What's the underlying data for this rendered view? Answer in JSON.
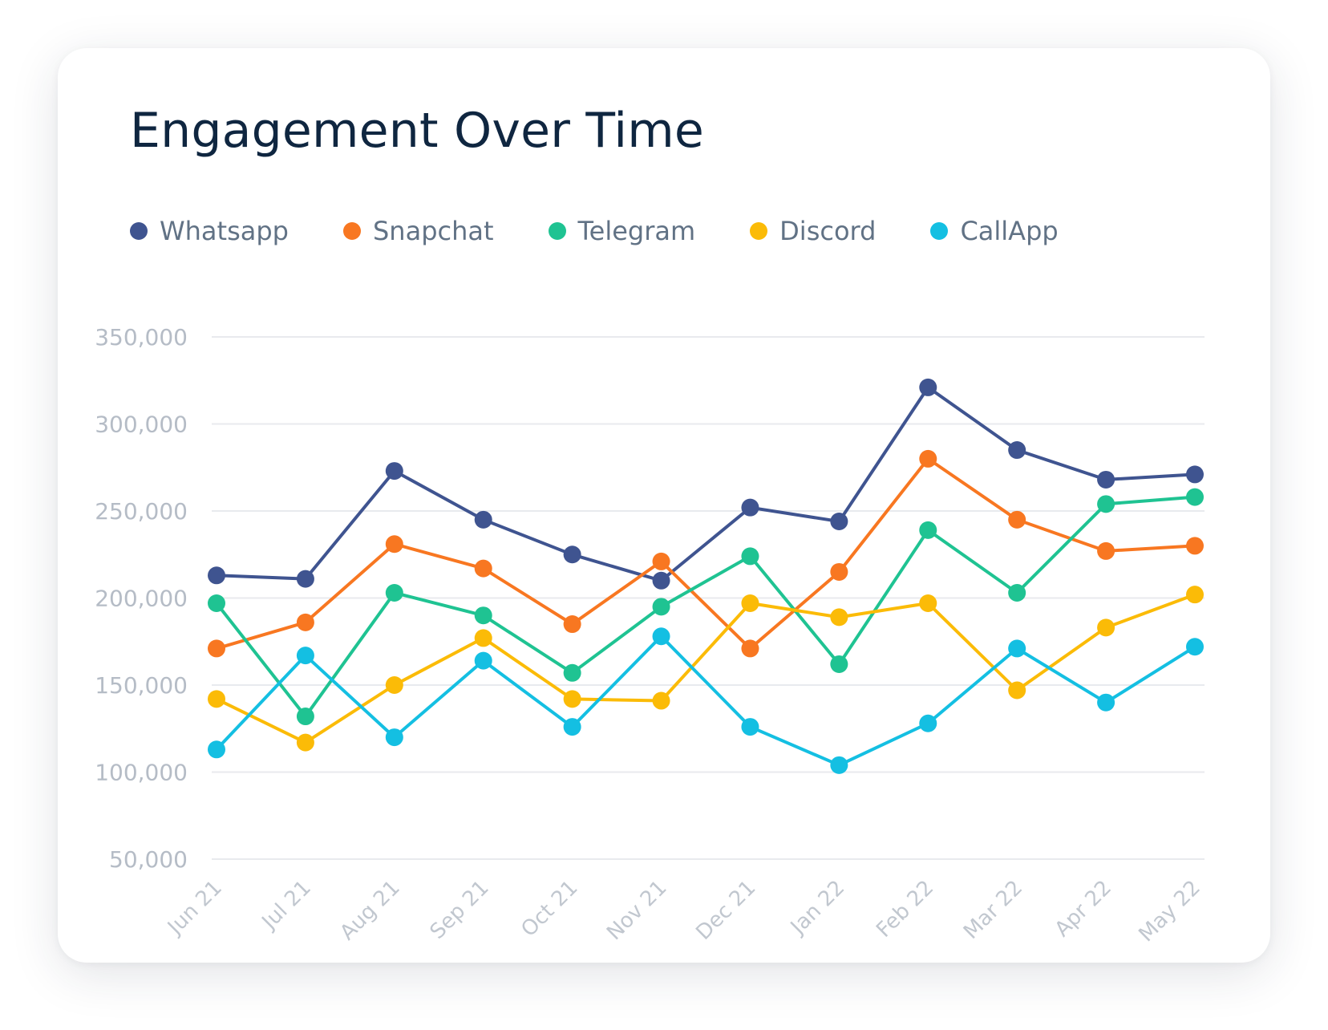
{
  "chart_data": {
    "type": "line",
    "title": "Engagement Over Time",
    "xlabel": "",
    "ylabel": "",
    "ylim": [
      50000,
      350000
    ],
    "yticks": [
      50000,
      100000,
      150000,
      200000,
      250000,
      300000,
      350000
    ],
    "ytick_labels": [
      "50,000",
      "100,000",
      "150,000",
      "200,000",
      "250,000",
      "300,000",
      "350,000"
    ],
    "grid": true,
    "legend": "top-left",
    "categories": [
      "Jun 21",
      "Jul 21",
      "Aug 21",
      "Sep 21",
      "Oct 21",
      "Nov 21",
      "Dec 21",
      "Jan 22",
      "Feb 22",
      "Mar 22",
      "Apr 22",
      "May 22"
    ],
    "series": [
      {
        "name": "Whatsapp",
        "color": "#3f5490",
        "values": [
          213000,
          211000,
          273000,
          245000,
          225000,
          210000,
          252000,
          244000,
          321000,
          285000,
          268000,
          271000
        ]
      },
      {
        "name": "Snapchat",
        "color": "#f87721",
        "values": [
          171000,
          186000,
          231000,
          217000,
          185000,
          221000,
          171000,
          215000,
          280000,
          245000,
          227000,
          230000
        ]
      },
      {
        "name": "Telegram",
        "color": "#1fc392",
        "values": [
          197000,
          132000,
          203000,
          190000,
          157000,
          195000,
          224000,
          162000,
          239000,
          203000,
          254000,
          258000
        ]
      },
      {
        "name": "Discord",
        "color": "#fbbb07",
        "values": [
          142000,
          117000,
          150000,
          177000,
          142000,
          141000,
          197000,
          189000,
          197000,
          147000,
          183000,
          202000
        ]
      },
      {
        "name": "CallApp",
        "color": "#14bfe2",
        "values": [
          113000,
          167000,
          120000,
          164000,
          126000,
          178000,
          126000,
          104000,
          128000,
          171000,
          140000,
          172000
        ]
      }
    ]
  }
}
